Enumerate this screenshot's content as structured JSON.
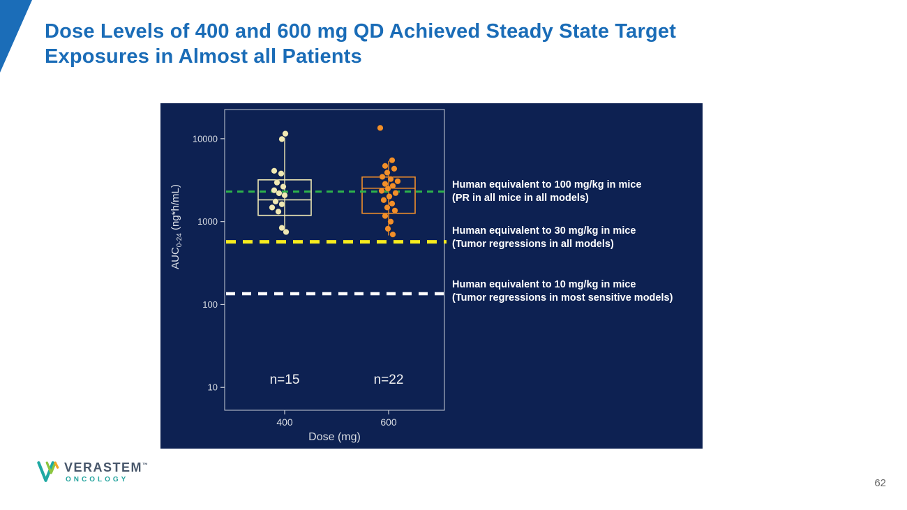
{
  "title": {
    "line1": "Dose Levels of 400 and 600 mg QD Achieved Steady State Target",
    "line2": "Exposures in Almost all Patients"
  },
  "footer": {
    "page_number": "62"
  },
  "logo": {
    "name": "VERASTEM",
    "tm": "™",
    "sub": "ONCOLOGY"
  },
  "colors": {
    "title_blue": "#1a6cb7",
    "panel_navy": "#0d2152",
    "group_400": "#f0e9b4",
    "group_600": "#f28f2a",
    "threshold_green": "#2db34b",
    "threshold_yellow": "#f7ec1e",
    "threshold_white": "#ffffff"
  },
  "chart_data": {
    "type": "box",
    "title": "",
    "xlabel": "Dose (mg)",
    "ylabel": {
      "prefix": "AUC",
      "sub": "0-24",
      "suffix": " (ng*h/mL)"
    },
    "yscale": "log",
    "ylim": [
      5.3,
      22500
    ],
    "yticks": [
      10,
      100,
      1000,
      10000
    ],
    "ytick_labels": [
      "10",
      "100",
      "1000",
      "10000"
    ],
    "categories": [
      "400",
      "600"
    ],
    "legend": "none",
    "grid": false,
    "groups": [
      {
        "dose": "400",
        "n": 15,
        "n_label": "n=15",
        "color": "#f0e9b4",
        "box": {
          "q1": 1190,
          "median": 1830,
          "q3": 3190,
          "whisker_low": 760,
          "whisker_high": 10300
        },
        "points": [
          [
            1,
            11500
          ],
          [
            -4,
            9900
          ],
          [
            -15,
            4100
          ],
          [
            -5,
            3800
          ],
          [
            -11,
            2960
          ],
          [
            -2,
            2640
          ],
          [
            -15,
            2390
          ],
          [
            -8,
            2200
          ],
          [
            0,
            2080
          ],
          [
            -13,
            1750
          ],
          [
            -4,
            1620
          ],
          [
            -18,
            1480
          ],
          [
            -9,
            1320
          ],
          [
            -4,
            840
          ],
          [
            2,
            750
          ]
        ]
      },
      {
        "dose": "600",
        "n": 22,
        "n_label": "n=22",
        "color": "#f28f2a",
        "box": {
          "q1": 1260,
          "median": 2530,
          "q3": 3450,
          "whisker_low": 680,
          "whisker_high": 5400
        },
        "points": [
          [
            -12,
            13500
          ],
          [
            5,
            5500
          ],
          [
            -5,
            4700
          ],
          [
            8,
            4350
          ],
          [
            -2,
            3900
          ],
          [
            -9,
            3470
          ],
          [
            3,
            3260
          ],
          [
            13,
            3070
          ],
          [
            -5,
            2850
          ],
          [
            6,
            2700
          ],
          [
            -1,
            2500
          ],
          [
            -10,
            2350
          ],
          [
            10,
            2210
          ],
          [
            1,
            2010
          ],
          [
            -7,
            1820
          ],
          [
            5,
            1650
          ],
          [
            -2,
            1480
          ],
          [
            9,
            1360
          ],
          [
            -5,
            1170
          ],
          [
            3,
            1000
          ],
          [
            -1,
            820
          ],
          [
            6,
            700
          ]
        ]
      }
    ],
    "thresholds": [
      {
        "value": 2300,
        "color": "#2db34b",
        "width": 3,
        "dash": "9 7",
        "label_line1": "Human equivalent to 100 mg/kg in mice",
        "label_line2": "(PR in all mice in all models)"
      },
      {
        "value": 570,
        "color": "#f7ec1e",
        "width": 5,
        "dash": "14 10",
        "label_line1": "Human equivalent to 30 mg/kg in mice",
        "label_line2": "(Tumor regressions in all models)"
      },
      {
        "value": 135,
        "color": "#ffffff",
        "width": 4.5,
        "dash": "13 10",
        "label_line1": "Human equivalent to 10 mg/kg in mice",
        "label_line2": "(Tumor regressions in most sensitive models)"
      }
    ]
  }
}
